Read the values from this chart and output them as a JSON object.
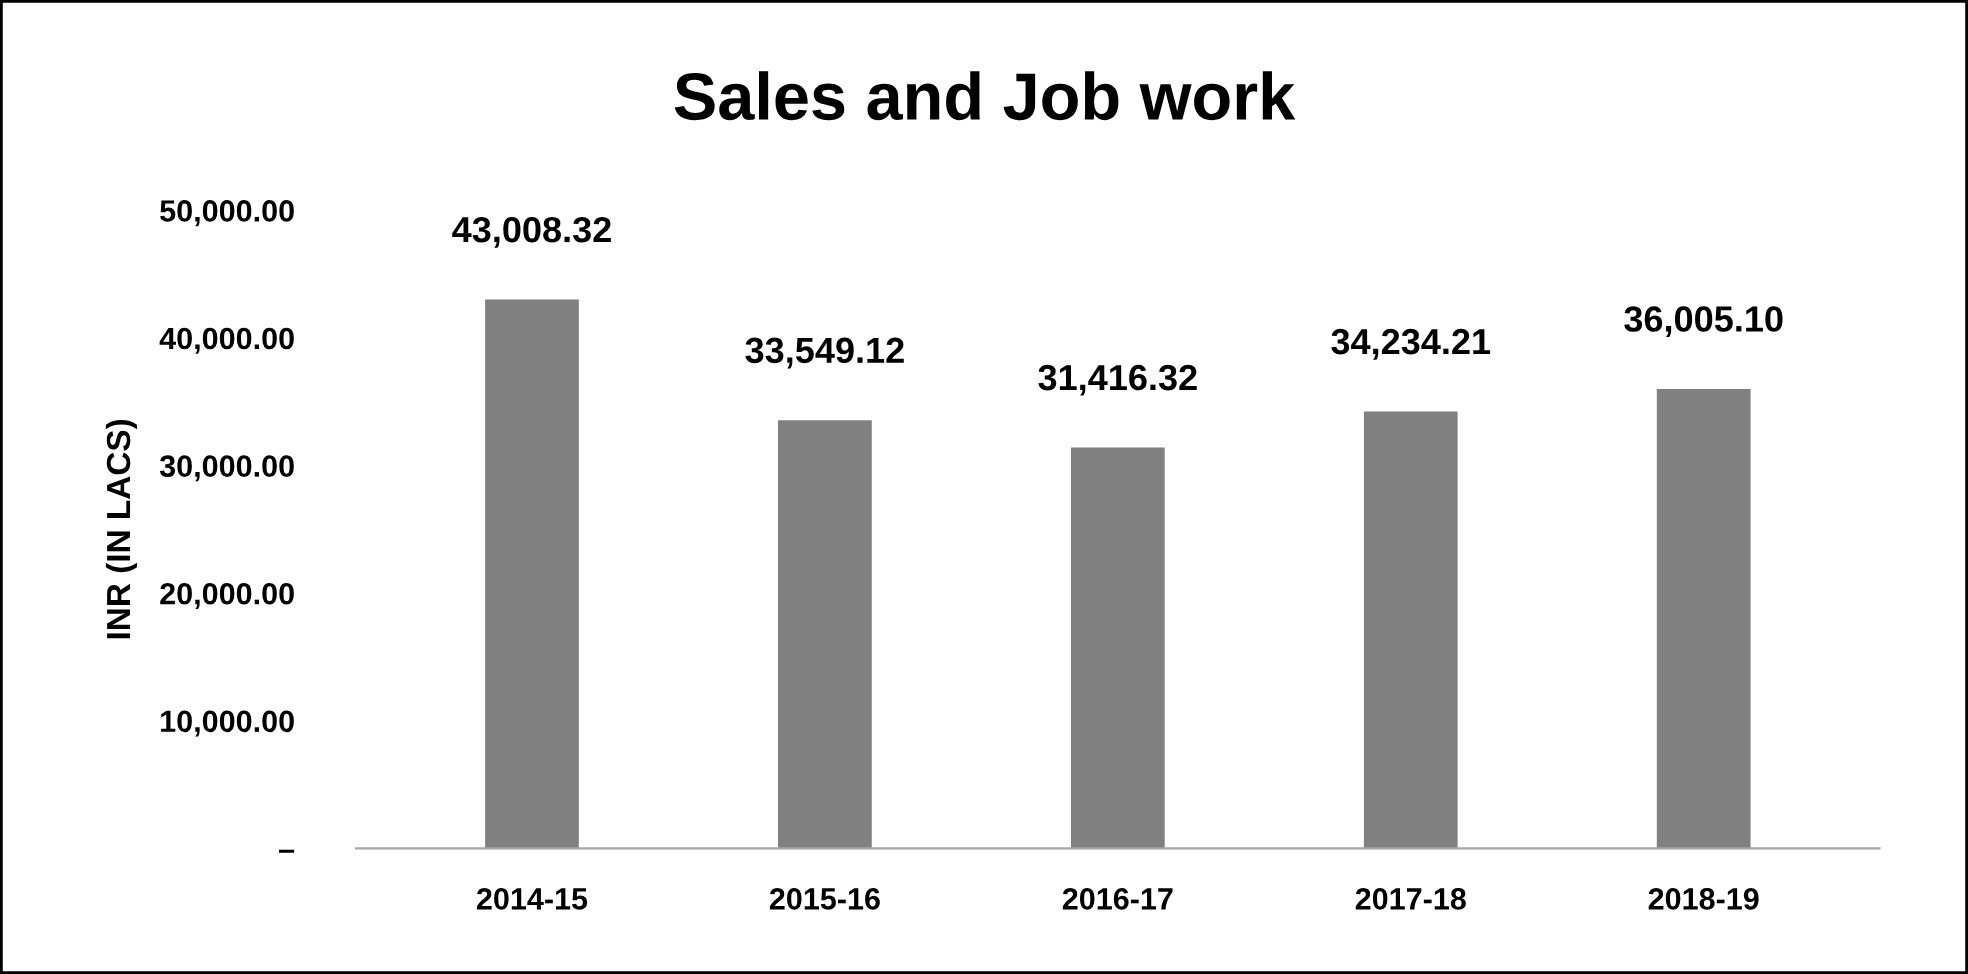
{
  "chart_data": {
    "type": "bar",
    "title": "Sales and Job work",
    "ylabel": "INR (IN LACS)",
    "categories": [
      "2014-15",
      "2015-16",
      "2016-17",
      "2017-18",
      "2018-19"
    ],
    "values": [
      43008.32,
      33549.12,
      31416.32,
      34234.21,
      36005.1
    ],
    "value_labels": [
      "43,008.32",
      "33,549.12",
      "31,416.32",
      "34,234.21",
      "36,005.10"
    ],
    "color": "#808080",
    "ylim": [
      0,
      50000
    ],
    "yticks": [
      {
        "value": 0,
        "label": "–"
      },
      {
        "value": 10000,
        "label": "10,000.00"
      },
      {
        "value": 20000,
        "label": "20,000.00"
      },
      {
        "value": 30000,
        "label": "30,000.00"
      },
      {
        "value": 40000,
        "label": "40,000.00"
      },
      {
        "value": 50000,
        "label": "50,000.00"
      }
    ],
    "grid": false,
    "legend": false
  }
}
